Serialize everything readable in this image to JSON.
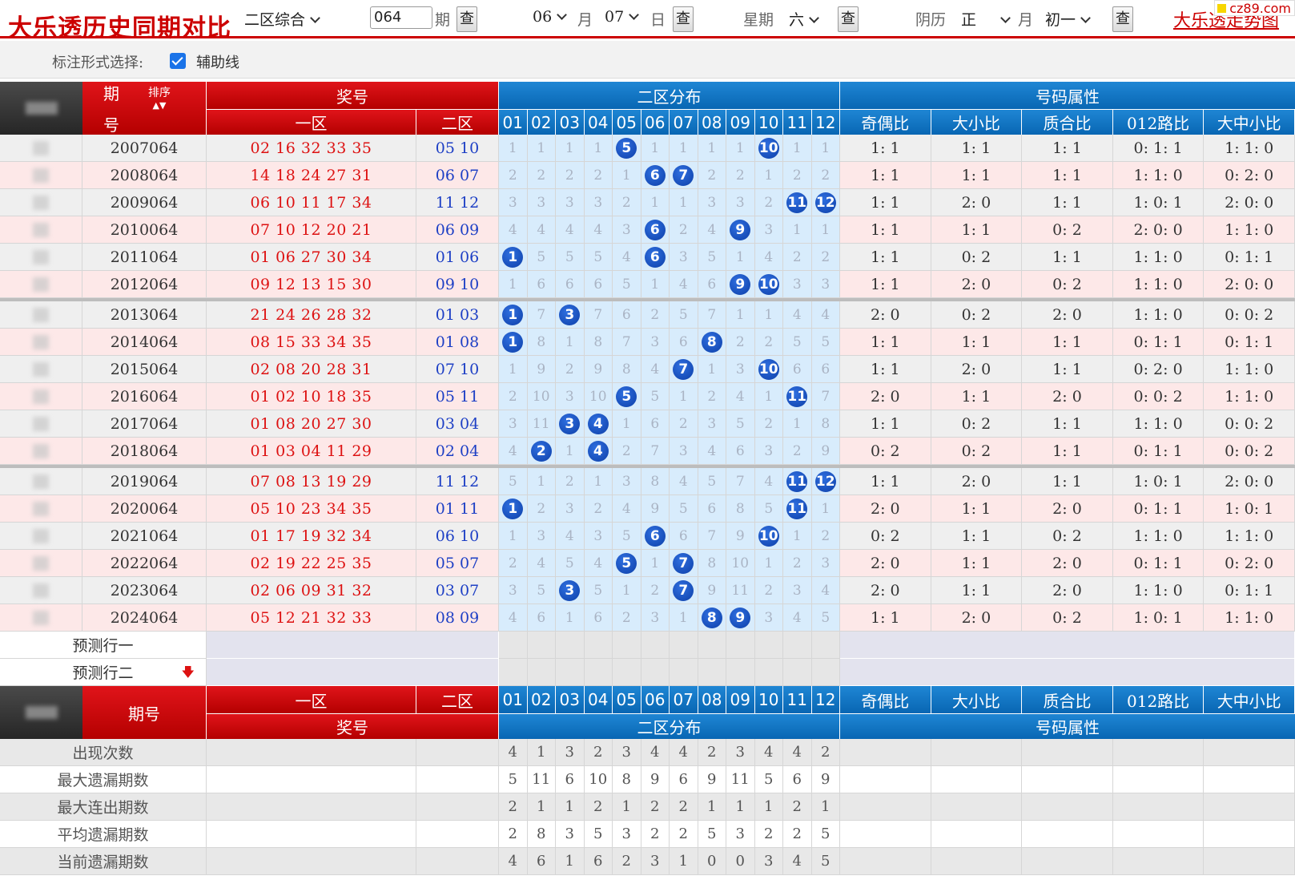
{
  "header": {
    "title": "大乐透历史同期对比",
    "mode": "二区综合",
    "issue": "064",
    "issue_unit": "期",
    "query_btn": "查",
    "month": "06",
    "month_unit": "月",
    "day": "07",
    "day_unit": "日",
    "weekday_label": "星期",
    "weekday": "六",
    "lunar_label": "阴历",
    "lunar_month": "正",
    "lunar_month_unit": "月",
    "lunar_day": "初一",
    "link": "大乐透走势图",
    "logo": "cz89.com"
  },
  "options": {
    "label": "标注形式选择:",
    "checkbox_label": "辅助线",
    "checked": true
  },
  "table": {
    "head": {
      "period": "期号",
      "period_top": "期",
      "period_bottom": "号",
      "sort": "排序",
      "prize": "奖号",
      "zone1": "一区",
      "zone2": "二区",
      "dist": "二区分布",
      "attr": "号码属性",
      "nums": [
        "01",
        "02",
        "03",
        "04",
        "05",
        "06",
        "07",
        "08",
        "09",
        "10",
        "11",
        "12"
      ],
      "attrs": [
        "奇偶比",
        "大小比",
        "质合比",
        "012路比",
        "大中小比"
      ]
    },
    "rows": [
      {
        "period": "2007064",
        "z1": "02 16 32 33 35",
        "z2": "05 10",
        "dist": [
          "1",
          "1",
          "1",
          "1",
          "5",
          "1",
          "1",
          "1",
          "1",
          "10",
          "1",
          "1"
        ],
        "hits": [
          5,
          10
        ],
        "attrs": [
          "1: 1",
          "1: 1",
          "1: 1",
          "0: 1: 1",
          "1: 1: 0"
        ]
      },
      {
        "period": "2008064",
        "z1": "14 18 24 27 31",
        "z2": "06 07",
        "dist": [
          "2",
          "2",
          "2",
          "2",
          "1",
          "6",
          "7",
          "2",
          "2",
          "1",
          "2",
          "2"
        ],
        "hits": [
          6,
          7
        ],
        "attrs": [
          "1: 1",
          "1: 1",
          "1: 1",
          "1: 1: 0",
          "0: 2: 0"
        ]
      },
      {
        "period": "2009064",
        "z1": "06 10 11 17 34",
        "z2": "11 12",
        "dist": [
          "3",
          "3",
          "3",
          "3",
          "2",
          "1",
          "1",
          "3",
          "3",
          "2",
          "11",
          "12"
        ],
        "hits": [
          11,
          12
        ],
        "attrs": [
          "1: 1",
          "2: 0",
          "1: 1",
          "1: 0: 1",
          "2: 0: 0"
        ]
      },
      {
        "period": "2010064",
        "z1": "07 10 12 20 21",
        "z2": "06 09",
        "dist": [
          "4",
          "4",
          "4",
          "4",
          "3",
          "6",
          "2",
          "4",
          "9",
          "3",
          "1",
          "1"
        ],
        "hits": [
          6,
          9
        ],
        "attrs": [
          "1: 1",
          "1: 1",
          "0: 2",
          "2: 0: 0",
          "1: 1: 0"
        ]
      },
      {
        "period": "2011064",
        "z1": "01 06 27 30 34",
        "z2": "01 06",
        "dist": [
          "1",
          "5",
          "5",
          "5",
          "4",
          "6",
          "3",
          "5",
          "1",
          "4",
          "2",
          "2"
        ],
        "hits": [
          1,
          6
        ],
        "attrs": [
          "1: 1",
          "0: 2",
          "1: 1",
          "1: 1: 0",
          "0: 1: 1"
        ]
      },
      {
        "period": "2012064",
        "z1": "09 12 13 15 30",
        "z2": "09 10",
        "dist": [
          "1",
          "6",
          "6",
          "6",
          "5",
          "1",
          "4",
          "6",
          "9",
          "10",
          "3",
          "3"
        ],
        "hits": [
          9,
          10
        ],
        "attrs": [
          "1: 1",
          "2: 0",
          "0: 2",
          "1: 1: 0",
          "2: 0: 0"
        ]
      },
      {
        "period": "2013064",
        "z1": "21 24 26 28 32",
        "z2": "01 03",
        "dist": [
          "1",
          "7",
          "3",
          "7",
          "6",
          "2",
          "5",
          "7",
          "1",
          "1",
          "4",
          "4"
        ],
        "hits": [
          1,
          3
        ],
        "attrs": [
          "2: 0",
          "0: 2",
          "2: 0",
          "1: 1: 0",
          "0: 0: 2"
        ]
      },
      {
        "period": "2014064",
        "z1": "08 15 33 34 35",
        "z2": "01 08",
        "dist": [
          "1",
          "8",
          "1",
          "8",
          "7",
          "3",
          "6",
          "8",
          "2",
          "2",
          "5",
          "5"
        ],
        "hits": [
          1,
          8
        ],
        "attrs": [
          "1: 1",
          "1: 1",
          "1: 1",
          "0: 1: 1",
          "0: 1: 1"
        ]
      },
      {
        "period": "2015064",
        "z1": "02 08 20 28 31",
        "z2": "07 10",
        "dist": [
          "1",
          "9",
          "2",
          "9",
          "8",
          "4",
          "7",
          "1",
          "3",
          "10",
          "6",
          "6"
        ],
        "hits": [
          7,
          10
        ],
        "attrs": [
          "1: 1",
          "2: 0",
          "1: 1",
          "0: 2: 0",
          "1: 1: 0"
        ]
      },
      {
        "period": "2016064",
        "z1": "01 02 10 18 35",
        "z2": "05 11",
        "dist": [
          "2",
          "10",
          "3",
          "10",
          "5",
          "5",
          "1",
          "2",
          "4",
          "1",
          "11",
          "7"
        ],
        "hits": [
          5,
          11
        ],
        "attrs": [
          "2: 0",
          "1: 1",
          "2: 0",
          "0: 0: 2",
          "1: 1: 0"
        ]
      },
      {
        "period": "2017064",
        "z1": "01 08 20 27 30",
        "z2": "03 04",
        "dist": [
          "3",
          "11",
          "3",
          "4",
          "1",
          "6",
          "2",
          "3",
          "5",
          "2",
          "1",
          "8"
        ],
        "hits": [
          3,
          4
        ],
        "attrs": [
          "1: 1",
          "0: 2",
          "1: 1",
          "1: 1: 0",
          "0: 0: 2"
        ]
      },
      {
        "period": "2018064",
        "z1": "01 03 04 11 29",
        "z2": "02 04",
        "dist": [
          "4",
          "2",
          "1",
          "4",
          "2",
          "7",
          "3",
          "4",
          "6",
          "3",
          "2",
          "9"
        ],
        "hits": [
          2,
          4
        ],
        "attrs": [
          "0: 2",
          "0: 2",
          "1: 1",
          "0: 1: 1",
          "0: 0: 2"
        ]
      },
      {
        "period": "2019064",
        "z1": "07 08 13 19 29",
        "z2": "11 12",
        "dist": [
          "5",
          "1",
          "2",
          "1",
          "3",
          "8",
          "4",
          "5",
          "7",
          "4",
          "11",
          "12"
        ],
        "hits": [
          11,
          12
        ],
        "attrs": [
          "1: 1",
          "2: 0",
          "1: 1",
          "1: 0: 1",
          "2: 0: 0"
        ]
      },
      {
        "period": "2020064",
        "z1": "05 10 23 34 35",
        "z2": "01 11",
        "dist": [
          "1",
          "2",
          "3",
          "2",
          "4",
          "9",
          "5",
          "6",
          "8",
          "5",
          "11",
          "1"
        ],
        "hits": [
          1,
          11
        ],
        "attrs": [
          "2: 0",
          "1: 1",
          "2: 0",
          "0: 1: 1",
          "1: 0: 1"
        ]
      },
      {
        "period": "2021064",
        "z1": "01 17 19 32 34",
        "z2": "06 10",
        "dist": [
          "1",
          "3",
          "4",
          "3",
          "5",
          "6",
          "6",
          "7",
          "9",
          "10",
          "1",
          "2"
        ],
        "hits": [
          6,
          10
        ],
        "attrs": [
          "0: 2",
          "1: 1",
          "0: 2",
          "1: 1: 0",
          "1: 1: 0"
        ]
      },
      {
        "period": "2022064",
        "z1": "02 19 22 25 35",
        "z2": "05 07",
        "dist": [
          "2",
          "4",
          "5",
          "4",
          "5",
          "1",
          "7",
          "8",
          "10",
          "1",
          "2",
          "3"
        ],
        "hits": [
          5,
          7
        ],
        "attrs": [
          "2: 0",
          "1: 1",
          "2: 0",
          "0: 1: 1",
          "0: 2: 0"
        ]
      },
      {
        "period": "2023064",
        "z1": "02 06 09 31 32",
        "z2": "03 07",
        "dist": [
          "3",
          "5",
          "3",
          "5",
          "1",
          "2",
          "7",
          "9",
          "11",
          "2",
          "3",
          "4"
        ],
        "hits": [
          3,
          7
        ],
        "attrs": [
          "2: 0",
          "1: 1",
          "2: 0",
          "1: 1: 0",
          "0: 1: 1"
        ]
      },
      {
        "period": "2024064",
        "z1": "05 12 21 32 33",
        "z2": "08 09",
        "dist": [
          "4",
          "6",
          "1",
          "6",
          "2",
          "3",
          "1",
          "8",
          "9",
          "3",
          "4",
          "5"
        ],
        "hits": [
          8,
          9
        ],
        "attrs": [
          "1: 1",
          "2: 0",
          "0: 2",
          "1: 0: 1",
          "1: 1: 0"
        ]
      }
    ],
    "predict": [
      "预测行一",
      "预测行二"
    ],
    "stats": [
      {
        "label": "出现次数",
        "values": [
          "4",
          "1",
          "3",
          "2",
          "3",
          "4",
          "4",
          "2",
          "3",
          "4",
          "4",
          "2"
        ]
      },
      {
        "label": "最大遗漏期数",
        "values": [
          "5",
          "11",
          "6",
          "10",
          "8",
          "9",
          "6",
          "9",
          "11",
          "5",
          "6",
          "9"
        ]
      },
      {
        "label": "最大连出期数",
        "values": [
          "2",
          "1",
          "1",
          "2",
          "1",
          "2",
          "2",
          "1",
          "1",
          "1",
          "2",
          "1"
        ]
      },
      {
        "label": "平均遗漏期数",
        "values": [
          "2",
          "8",
          "3",
          "5",
          "3",
          "2",
          "2",
          "5",
          "3",
          "2",
          "2",
          "5"
        ]
      },
      {
        "label": "当前遗漏期数",
        "values": [
          "4",
          "6",
          "1",
          "6",
          "2",
          "3",
          "1",
          "0",
          "0",
          "3",
          "4",
          "5"
        ]
      }
    ]
  },
  "colors": {
    "red": "#cc0000",
    "blue": "#0866b3",
    "ball": "#0d3fa8"
  }
}
